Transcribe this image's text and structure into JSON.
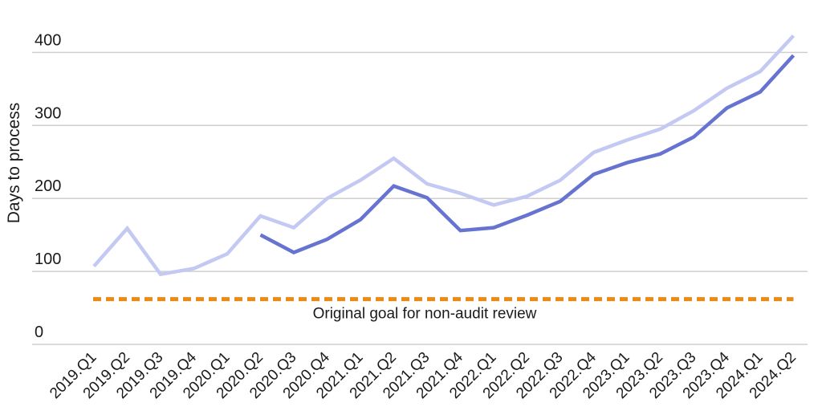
{
  "chart_data": {
    "type": "line",
    "title": "",
    "xlabel": "",
    "ylabel": "Days to process",
    "ylim": [
      0,
      430
    ],
    "yticks": [
      0,
      100,
      200,
      300,
      400
    ],
    "grid": true,
    "categories": [
      "2019.Q1",
      "2019.Q2",
      "2019.Q3",
      "2019.Q4",
      "2020.Q1",
      "2020.Q2",
      "2020.Q3",
      "2020.Q4",
      "2021.Q1",
      "2021.Q2",
      "2021.Q3",
      "2021.Q4",
      "2022.Q1",
      "2022.Q2",
      "2022.Q3",
      "2022.Q4",
      "2023.Q1",
      "2023.Q2",
      "2023.Q3",
      "2023.Q4",
      "2024.Q1",
      "2024.Q2"
    ],
    "series": [
      {
        "color": "#c3c9f2",
        "values": [
          107,
          159,
          96,
          104,
          124,
          176,
          160,
          200,
          225,
          255,
          220,
          207,
          191,
          203,
          225,
          263,
          280,
          295,
          320,
          351,
          374,
          423
        ]
      },
      {
        "color": "#6673d1",
        "values": [
          null,
          null,
          null,
          null,
          null,
          150,
          126,
          144,
          171,
          217,
          201,
          156,
          160,
          177,
          196,
          233,
          249,
          261,
          284,
          324,
          346,
          396
        ]
      }
    ],
    "reference_line": {
      "value": 62,
      "label": "Original goal for non-audit review",
      "color": "#ea8a12"
    }
  }
}
